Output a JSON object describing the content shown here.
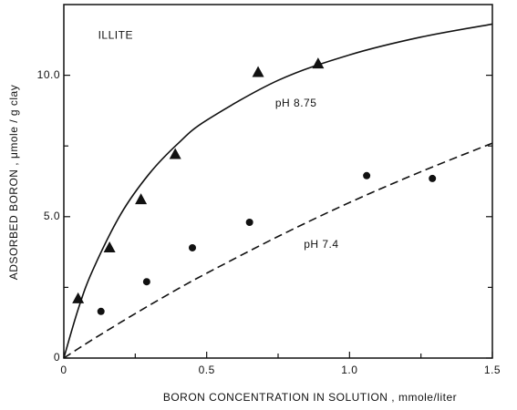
{
  "chart_data": {
    "type": "scatter",
    "xlabel": "BORON CONCENTRATION IN SOLUTION , mmole/liter",
    "ylabel": "ADSORBED BORON , μmole / g clay",
    "xlim": [
      0,
      1.5
    ],
    "ylim": [
      0,
      12.5
    ],
    "xticks": [
      0,
      0.5,
      {
        "value": 1,
        "label": "1.0"
      },
      {
        "value": 1.5,
        "label": "1.5"
      }
    ],
    "yticks": [
      0,
      {
        "value": 5,
        "label": "5.0"
      },
      {
        "value": 10,
        "label": "10.0"
      }
    ],
    "yticks_minor": [
      2.5,
      7.5
    ],
    "xticks_minor": [
      0.25,
      0.75,
      1.25
    ],
    "annotations": [
      {
        "text": "ILLITE",
        "x": 0.12,
        "y": 11.4
      },
      {
        "text": "pH 8.75",
        "x": 0.74,
        "y": 9.0
      },
      {
        "text": "pH 7.4",
        "x": 0.84,
        "y": 4.0
      }
    ],
    "series": [
      {
        "marker": "triangle",
        "color": "#111111",
        "x": [
          0.05,
          0.16,
          0.27,
          0.39,
          0.68,
          0.89
        ],
        "values": [
          2.1,
          3.9,
          5.6,
          7.2,
          10.1,
          10.4
        ]
      },
      {
        "marker": "circle",
        "color": "#111111",
        "x": [
          0.13,
          0.29,
          0.45,
          0.65,
          1.06,
          1.29
        ],
        "values": [
          1.65,
          2.7,
          3.9,
          4.8,
          6.45,
          6.35
        ]
      }
    ],
    "lines": [
      {
        "style": "solid",
        "color": "#111111",
        "x": [
          0,
          0.05,
          0.1,
          0.2,
          0.3,
          0.4,
          0.5,
          0.75,
          1.0,
          1.25,
          1.5
        ],
        "values": [
          0,
          1.72,
          3.08,
          5.1,
          6.53,
          7.59,
          8.41,
          9.82,
          10.72,
          11.35,
          11.81
        ]
      },
      {
        "style": "dashed",
        "color": "#111111",
        "x": [
          0,
          0.05,
          0.1,
          0.2,
          0.3,
          0.4,
          0.5,
          0.75,
          1.0,
          1.25,
          1.5
        ],
        "values": [
          0,
          0.33,
          0.65,
          1.27,
          1.87,
          2.45,
          3.0,
          4.3,
          5.5,
          6.59,
          7.6
        ]
      }
    ]
  }
}
